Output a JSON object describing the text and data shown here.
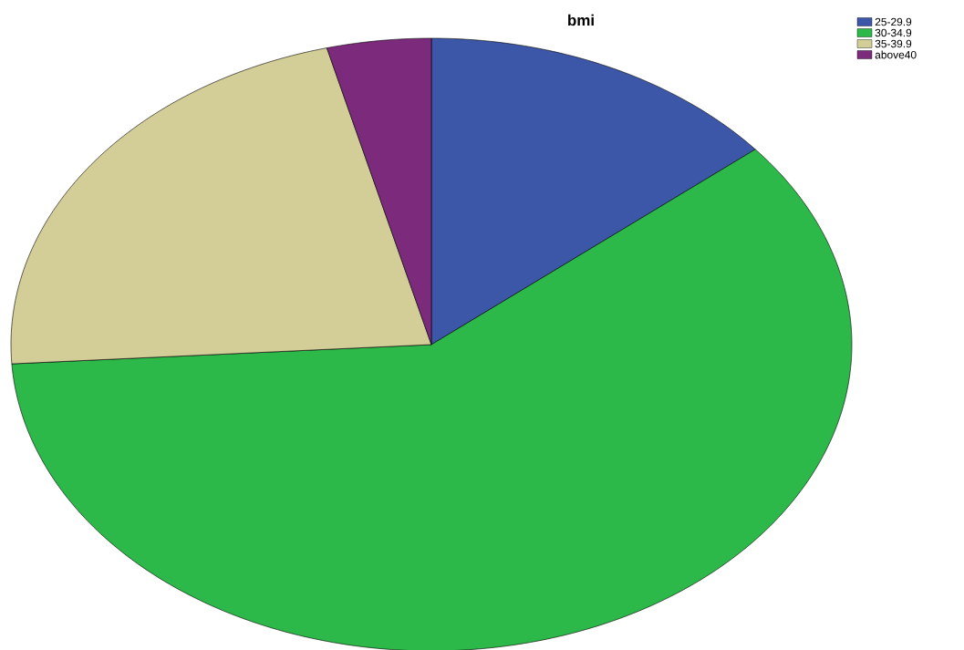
{
  "chart_data": {
    "type": "pie",
    "title": "bmi",
    "categories": [
      "25-29.9",
      "30-34.9",
      "35-39.9",
      "above40"
    ],
    "values": [
      14,
      60,
      22,
      4
    ],
    "colors": [
      "#3c56a8",
      "#2db84a",
      "#d3cd97",
      "#7b2a7c"
    ],
    "legend": "top right"
  }
}
